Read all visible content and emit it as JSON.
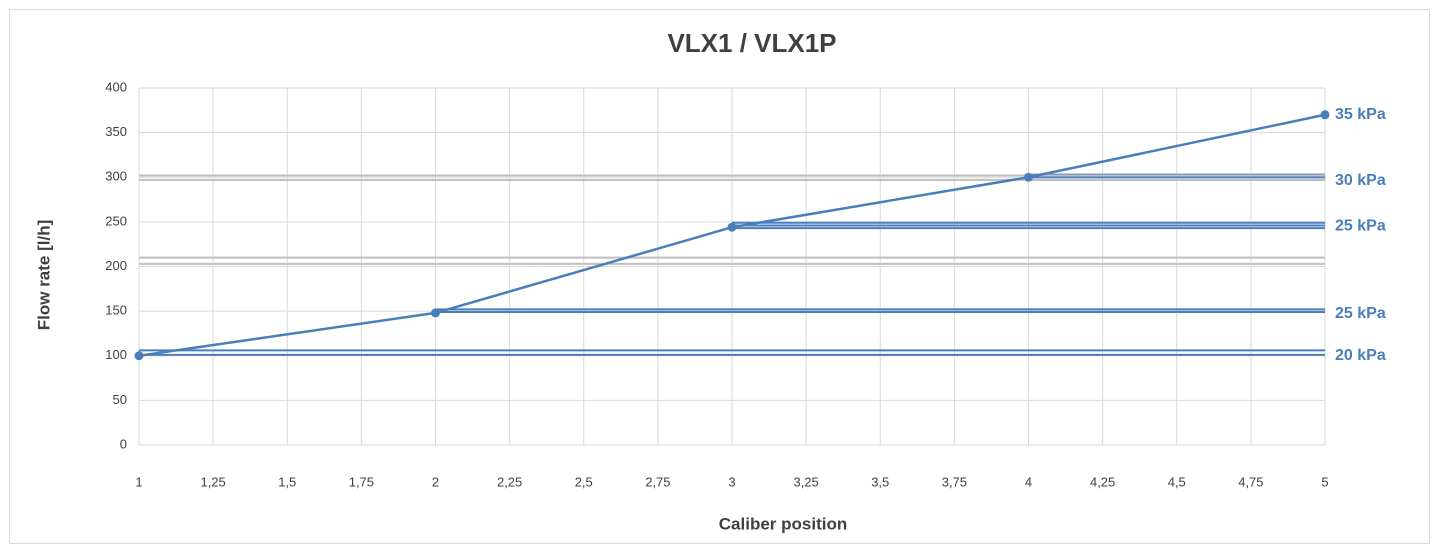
{
  "chart_data": {
    "type": "line",
    "title": "VLX1  /  VLX1P",
    "x_label": "Caliber position",
    "y_label": "Flow rate [l/h]",
    "x": [
      1,
      2,
      3,
      4,
      5
    ],
    "series": [
      {
        "name": "VLX1 / VLX1P",
        "color": "#4a7ebb",
        "values": [
          100,
          148,
          244,
          300,
          370
        ]
      }
    ],
    "xlim": [
      1,
      5
    ],
    "xticks": [
      1,
      {
        "value": 1.25,
        "label": "1,25"
      },
      {
        "value": 1.5,
        "label": "1,5"
      },
      {
        "value": 1.75,
        "label": "1,75"
      },
      2,
      {
        "value": 2.25,
        "label": "2,25"
      },
      {
        "value": 2.5,
        "label": "2,5"
      },
      {
        "value": 2.75,
        "label": "2,75"
      },
      3,
      {
        "value": 3.25,
        "label": "3,25"
      },
      {
        "value": 3.5,
        "label": "3,5"
      },
      {
        "value": 3.75,
        "label": "3,75"
      },
      4,
      {
        "value": 4.25,
        "label": "4,25"
      },
      {
        "value": 4.5,
        "label": "4,5"
      },
      {
        "value": 4.75,
        "label": "4,75"
      },
      5
    ],
    "ylim": [
      0,
      400
    ],
    "yticks": [
      0,
      50,
      100,
      150,
      200,
      250,
      300,
      350,
      400
    ],
    "grid": true,
    "reference_lines": [
      {
        "from": 1,
        "values": [
          101,
          106
        ],
        "color": "#4a7ebb"
      },
      {
        "from": 2,
        "values": [
          149,
          152
        ],
        "color": "#4a7ebb"
      },
      {
        "from": 3,
        "values": [
          243,
          246,
          249
        ],
        "color": "#4a7ebb"
      },
      {
        "from": 4,
        "values": [
          297,
          300,
          303
        ],
        "color": "#4a7ebb"
      },
      {
        "from": 1,
        "values": [
          203,
          210
        ],
        "color": "#bfbfbf"
      },
      {
        "from": 1,
        "values": [
          297,
          302
        ],
        "color": "#bfbfbf"
      }
    ],
    "annotations": [
      {
        "text": "35 kPa",
        "y": 370
      },
      {
        "text": "30 kPa",
        "y": 296
      },
      {
        "text": "25 kPa",
        "y": 245
      },
      {
        "text": "25 kPa",
        "y": 147
      },
      {
        "text": "20 kPa",
        "y": 100
      }
    ],
    "annotation_color": "#4a7ebb"
  }
}
